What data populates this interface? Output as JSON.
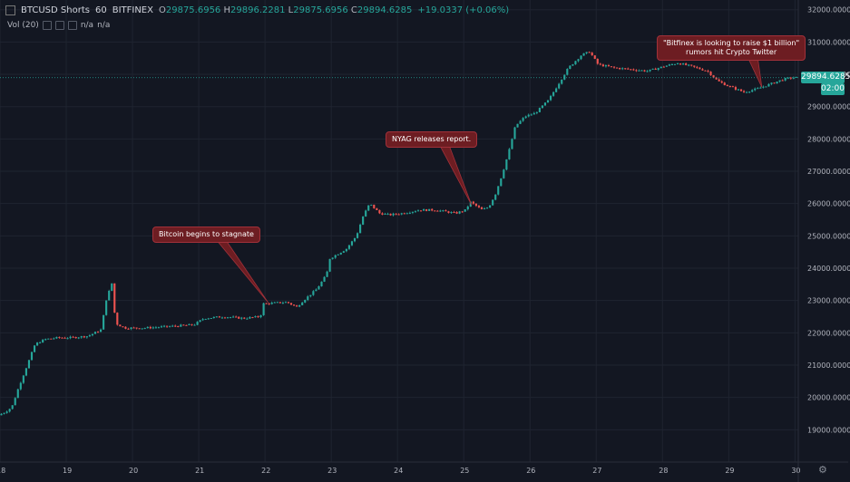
{
  "header": {
    "icon": "chart-type-icon",
    "symbol": "BTCUSD Shorts",
    "interval": "60",
    "exchange": "BITFINEX",
    "o": "29875.6956",
    "h": "29896.2281",
    "l": "29875.6956",
    "c": "29894.6285",
    "change": "+19.0337 (+0.06%)",
    "o_label": "O",
    "h_label": "H",
    "l_label": "L",
    "c_label": "C"
  },
  "volume": {
    "label": "Vol (20)",
    "value1": "n/a",
    "value2": "n/a"
  },
  "price_tag": {
    "value": "29894.6285",
    "time": "02:00",
    "color": "#26a69a"
  },
  "colors": {
    "background": "#131722",
    "up": "#26a69a",
    "down": "#ef5350",
    "annotation_bg": "#6d1d22"
  },
  "chart_data": {
    "type": "candlestick",
    "x_ticks": [
      "18",
      "19",
      "20",
      "21",
      "22",
      "23",
      "24",
      "25",
      "26",
      "27",
      "28",
      "29",
      "30"
    ],
    "y_ticks": [
      "19000.0000",
      "20000.0000",
      "21000.0000",
      "22000.0000",
      "23000.0000",
      "24000.0000",
      "25000.0000",
      "26000.0000",
      "27000.0000",
      "28000.0000",
      "29000.0000",
      "30000.0000",
      "31000.0000",
      "32000.0000"
    ],
    "ylim": [
      18000,
      32300
    ],
    "xlim": [
      18.0,
      30.05
    ],
    "grid": true,
    "series_path": [
      [
        18.0,
        19450
      ],
      [
        18.1,
        19550
      ],
      [
        18.2,
        19700
      ],
      [
        18.3,
        20300
      ],
      [
        18.45,
        21100
      ],
      [
        18.55,
        21650
      ],
      [
        18.7,
        21800
      ],
      [
        18.9,
        21850
      ],
      [
        19.1,
        21850
      ],
      [
        19.35,
        21900
      ],
      [
        19.55,
        22100
      ],
      [
        19.62,
        23000
      ],
      [
        19.72,
        23600
      ],
      [
        19.76,
        22300
      ],
      [
        19.9,
        22150
      ],
      [
        20.2,
        22150
      ],
      [
        20.6,
        22200
      ],
      [
        20.95,
        22250
      ],
      [
        21.1,
        22450
      ],
      [
        21.4,
        22500
      ],
      [
        21.7,
        22450
      ],
      [
        21.95,
        22500
      ],
      [
        22.0,
        22900
      ],
      [
        22.35,
        22950
      ],
      [
        22.5,
        22800
      ],
      [
        22.6,
        23000
      ],
      [
        22.8,
        23350
      ],
      [
        22.95,
        23800
      ],
      [
        23.0,
        24300
      ],
      [
        23.25,
        24600
      ],
      [
        23.4,
        25000
      ],
      [
        23.5,
        25600
      ],
      [
        23.6,
        26000
      ],
      [
        23.75,
        25700
      ],
      [
        23.9,
        25650
      ],
      [
        24.1,
        25700
      ],
      [
        24.35,
        25800
      ],
      [
        24.6,
        25800
      ],
      [
        24.9,
        25700
      ],
      [
        25.05,
        25800
      ],
      [
        25.12,
        26050
      ],
      [
        25.3,
        25800
      ],
      [
        25.4,
        25900
      ],
      [
        25.5,
        26300
      ],
      [
        25.6,
        26900
      ],
      [
        25.7,
        27600
      ],
      [
        25.8,
        28400
      ],
      [
        25.95,
        28700
      ],
      [
        26.1,
        28800
      ],
      [
        26.3,
        29200
      ],
      [
        26.45,
        29700
      ],
      [
        26.6,
        30200
      ],
      [
        26.8,
        30600
      ],
      [
        26.92,
        30700
      ],
      [
        27.05,
        30300
      ],
      [
        27.3,
        30200
      ],
      [
        27.55,
        30150
      ],
      [
        27.8,
        30100
      ],
      [
        28.05,
        30250
      ],
      [
        28.25,
        30350
      ],
      [
        28.45,
        30250
      ],
      [
        28.7,
        30100
      ],
      [
        28.85,
        29800
      ],
      [
        29.0,
        29650
      ],
      [
        29.25,
        29450
      ],
      [
        29.45,
        29550
      ],
      [
        29.65,
        29700
      ],
      [
        29.85,
        29850
      ],
      [
        30.0,
        29900
      ]
    ],
    "annotations": [
      {
        "text": "Bitcoin begins to stagnate",
        "target": [
          22.05,
          22930
        ]
      },
      {
        "text": "NYAG releases report.",
        "target": [
          25.12,
          25950
        ]
      },
      {
        "text": "\"Bitfinex is looking to raise $1 billion\"\nrumors hit Crypto Twitter",
        "target": [
          29.5,
          29600
        ]
      }
    ],
    "last_price": 29894.6285
  }
}
